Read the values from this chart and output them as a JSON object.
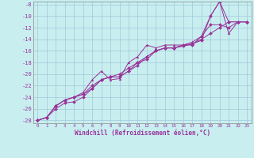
{
  "xlabel": "Windchill (Refroidissement éolien,°C)",
  "xlim": [
    -0.5,
    23.5
  ],
  "ylim": [
    -28.5,
    -7.5
  ],
  "xticks": [
    0,
    1,
    2,
    3,
    4,
    5,
    6,
    7,
    8,
    9,
    10,
    11,
    12,
    13,
    14,
    15,
    16,
    17,
    18,
    19,
    20,
    21,
    22,
    23
  ],
  "yticks": [
    -28,
    -26,
    -24,
    -22,
    -20,
    -18,
    -16,
    -14,
    -12,
    -10,
    -8
  ],
  "background_color": "#c8eef0",
  "grid_color": "#a0c8d8",
  "line_color": "#993399",
  "series": [
    {
      "x": [
        0,
        1,
        2,
        3,
        4,
        5,
        6,
        7,
        8,
        9,
        10,
        11,
        12,
        13,
        14,
        15,
        16,
        17,
        18,
        19,
        20,
        21,
        22,
        23
      ],
      "y": [
        -28,
        -27.5,
        -25.5,
        -24.5,
        -24,
        -23.5,
        -22.0,
        -21.0,
        -20.5,
        -20.5,
        -19.5,
        -18.0,
        -17.5,
        -16.0,
        -15.5,
        -15.5,
        -15.2,
        -14.8,
        -14.2,
        -10.0,
        -7.5,
        -11.0,
        -11.0,
        -11.0
      ],
      "marker": "D"
    },
    {
      "x": [
        0,
        1,
        2,
        3,
        4,
        5,
        6,
        7,
        8,
        9,
        10,
        11,
        12,
        13,
        14,
        15,
        16,
        17,
        18,
        19,
        20,
        21,
        22,
        23
      ],
      "y": [
        -28,
        -27.5,
        -25.5,
        -24.5,
        -24,
        -23.5,
        -22.5,
        -21.0,
        -20.5,
        -20.0,
        -19.0,
        -18.0,
        -17.0,
        -16.0,
        -15.5,
        -15.5,
        -15.0,
        -14.8,
        -14.0,
        -13.0,
        -12.0,
        -11.0,
        -11.0,
        -11.0
      ],
      "marker": "D"
    },
    {
      "x": [
        0,
        1,
        2,
        3,
        4,
        5,
        6,
        7,
        8,
        9,
        10,
        11,
        12,
        13,
        14,
        15,
        16,
        17,
        18,
        19,
        20,
        21,
        22,
        23
      ],
      "y": [
        -28,
        -27.5,
        -25.5,
        -24.5,
        -24,
        -23.2,
        -21.0,
        -19.5,
        -21.0,
        -20.8,
        -18.0,
        -17.0,
        -15.0,
        -15.5,
        -15.0,
        -15.0,
        -15.0,
        -14.5,
        -13.5,
        -10.0,
        -7.5,
        -13.0,
        -11.0,
        -11.0
      ],
      "marker": "^"
    },
    {
      "x": [
        0,
        1,
        2,
        3,
        4,
        5,
        6,
        7,
        8,
        9,
        10,
        11,
        12,
        13,
        14,
        15,
        16,
        17,
        18,
        19,
        20,
        21,
        22,
        23
      ],
      "y": [
        -28,
        -27.5,
        -26.0,
        -25.0,
        -24.8,
        -24.0,
        -22.5,
        -21.0,
        -20.5,
        -20.5,
        -19.5,
        -18.5,
        -17.0,
        -16.0,
        -15.5,
        -15.5,
        -15.0,
        -15.0,
        -13.5,
        -11.5,
        -11.5,
        -12.0,
        -11.0,
        -11.0
      ],
      "marker": "D"
    }
  ]
}
